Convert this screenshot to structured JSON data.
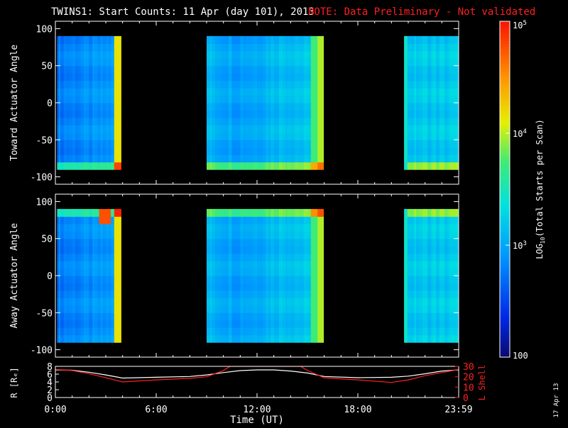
{
  "header": {
    "title": "TWINS1: Start Counts: 11 Apr (day 101), 2013",
    "note": "NOTE: Data Preliminary - Not validated"
  },
  "date_stamp": "17 Apr 13",
  "colors": {
    "background": "#000000",
    "axes": "#ffffff",
    "note": "#ff2020",
    "r_line": "#ffffff",
    "lshell_line": "#ff2020"
  },
  "chart_data": [
    {
      "type": "heatmap",
      "id": "toward",
      "ylabel": "Toward Actuator Angle",
      "xlim": [
        0,
        24
      ],
      "ylim": [
        -110,
        110
      ],
      "yticks": [
        -100,
        -50,
        0,
        50,
        100
      ],
      "data_coverage": [
        {
          "start": 0.1,
          "end": 3.9
        },
        {
          "start": 9.0,
          "end": 15.95
        },
        {
          "start": 20.75,
          "end": 24.0
        }
      ],
      "angle_range": [
        -90,
        90
      ]
    },
    {
      "type": "heatmap",
      "id": "away",
      "ylabel": "Away Actuator Angle",
      "xlim": [
        0,
        24
      ],
      "ylim": [
        -110,
        110
      ],
      "yticks": [
        -100,
        -50,
        0,
        50,
        100
      ],
      "data_coverage": [
        {
          "start": 0.1,
          "end": 3.9
        },
        {
          "start": 9.0,
          "end": 15.95
        },
        {
          "start": 20.75,
          "end": 24.0
        }
      ],
      "angle_range": [
        -90,
        90
      ]
    },
    {
      "type": "line",
      "id": "orbit",
      "ylabel_left": "R [Rₑ]",
      "ylabel_right": "L Shell",
      "xlabel": "Time (UT)",
      "xlim": [
        0,
        24
      ],
      "xticks": [
        "0:00",
        "6:00",
        "12:00",
        "18:00",
        "23:59"
      ],
      "ylim_left": [
        0,
        8
      ],
      "yticks_left": [
        0,
        2,
        4,
        6,
        8
      ],
      "ylim_right": [
        0,
        30
      ],
      "yticks_right": [
        0,
        10,
        20,
        30
      ],
      "series": [
        {
          "axis": "left",
          "x": [
            0,
            1,
            2,
            3,
            4,
            6,
            8,
            9,
            10,
            11,
            12,
            13,
            14,
            15,
            16,
            18,
            20,
            21,
            22,
            23,
            24
          ],
          "y": [
            7.1,
            7.0,
            6.5,
            5.8,
            5.0,
            5.2,
            5.4,
            5.8,
            6.4,
            6.9,
            7.1,
            7.1,
            6.8,
            6.3,
            5.4,
            5.1,
            5.2,
            5.5,
            6.1,
            6.8,
            7.1
          ]
        },
        {
          "axis": "right",
          "x": [
            0,
            1,
            2,
            3,
            4,
            6,
            8,
            9,
            10,
            10.4,
            14.6,
            15,
            16,
            18,
            20,
            21,
            22,
            23,
            24
          ],
          "y": [
            27,
            26,
            23,
            19,
            15,
            17,
            18.5,
            20,
            26,
            30,
            30,
            26,
            19,
            17,
            14.5,
            17,
            21,
            24,
            27
          ]
        }
      ]
    },
    {
      "type": "heatmap",
      "id": "colorbar",
      "label": "LOG10(Total Starts per Scan)",
      "label_main": "LOG",
      "label_sub": "10",
      "label_rest": "(Total Starts per Scan)",
      "scale": "log",
      "range": [
        100,
        100000
      ],
      "ticks": [
        {
          "value": 100,
          "base": "100",
          "exp": ""
        },
        {
          "value": 1000,
          "base": "10",
          "exp": "3"
        },
        {
          "value": 10000,
          "base": "10",
          "exp": "4"
        },
        {
          "value": 100000,
          "base": "10",
          "exp": "5"
        }
      ]
    }
  ]
}
